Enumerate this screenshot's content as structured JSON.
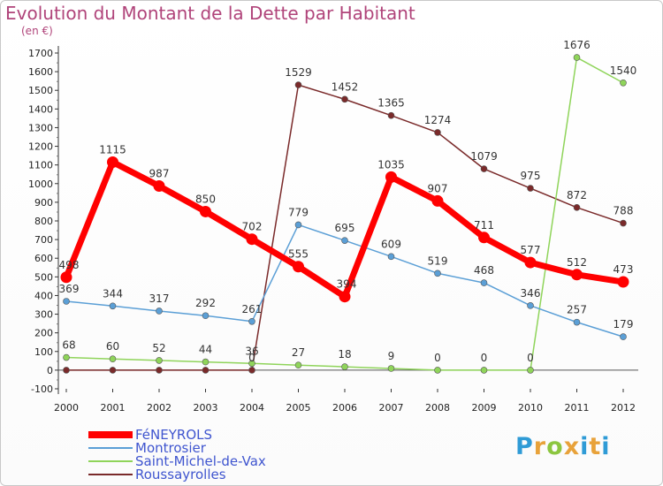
{
  "title": "Evolution du Montant de la Dette par Habitant",
  "unit": "(en €)",
  "logo": {
    "p": "P",
    "r": "r",
    "o": "o",
    "x": "x",
    "i": "i",
    "t": "t",
    "i2": "i"
  },
  "chart_data": {
    "type": "line",
    "title": "Evolution du Montant de la Dette par Habitant",
    "ylabel": "(en €)",
    "xlabel": "",
    "ylim": [
      -100,
      1700
    ],
    "yticks": [
      -100,
      0,
      100,
      200,
      300,
      400,
      500,
      600,
      700,
      800,
      900,
      1000,
      1100,
      1200,
      1300,
      1400,
      1500,
      1600,
      1700
    ],
    "categories": [
      "2000",
      "2001",
      "2002",
      "2003",
      "2004",
      "2005",
      "2006",
      "2007",
      "2008",
      "2009",
      "2010",
      "2011",
      "2012"
    ],
    "grid": false,
    "legend_position": "bottom-left",
    "series": [
      {
        "name": "Roussayrolles",
        "color": "#7a2a2a",
        "width": 1.5,
        "values": [
          0,
          0,
          0,
          0,
          0,
          1529,
          1452,
          1365,
          1274,
          1079,
          975,
          872,
          788
        ],
        "labels": [
          "",
          "",
          "",
          "",
          "0",
          "1529",
          "1452",
          "1365",
          "1274",
          "1079",
          "975",
          "872",
          "788"
        ]
      },
      {
        "name": "Saint-Michel-de-Vax",
        "color": "#8fd45a",
        "width": 1.5,
        "values": [
          68,
          60,
          52,
          44,
          36,
          27,
          18,
          9,
          0,
          0,
          0,
          1676,
          1540
        ],
        "labels": [
          "68",
          "60",
          "52",
          "44",
          "36",
          "27",
          "18",
          "9",
          "0",
          "0",
          "0",
          "1676",
          "1540"
        ]
      },
      {
        "name": "Montrosier",
        "color": "#5b9fd6",
        "width": 1.5,
        "values": [
          369,
          344,
          317,
          292,
          261,
          779,
          695,
          609,
          519,
          468,
          346,
          257,
          179
        ],
        "labels": [
          "369",
          "344",
          "317",
          "292",
          "261",
          "779",
          "695",
          "609",
          "519",
          "468",
          "346",
          "257",
          "179"
        ]
      },
      {
        "name": "FéNEYROLS",
        "color": "#ff0000",
        "width": 7,
        "values": [
          498,
          1115,
          987,
          850,
          702,
          555,
          394,
          1035,
          907,
          711,
          577,
          512,
          473
        ],
        "labels": [
          "498",
          "1115",
          "987",
          "850",
          "702",
          "555",
          "394",
          "1035",
          "907",
          "711",
          "577",
          "512",
          "473"
        ]
      }
    ],
    "legend": [
      {
        "name": "FéNEYROLS",
        "color": "#ff0000"
      },
      {
        "name": "Montrosier",
        "color": "#5b9fd6"
      },
      {
        "name": "Saint-Michel-de-Vax",
        "color": "#8fd45a"
      },
      {
        "name": "Roussayrolles",
        "color": "#7a2a2a"
      }
    ]
  }
}
